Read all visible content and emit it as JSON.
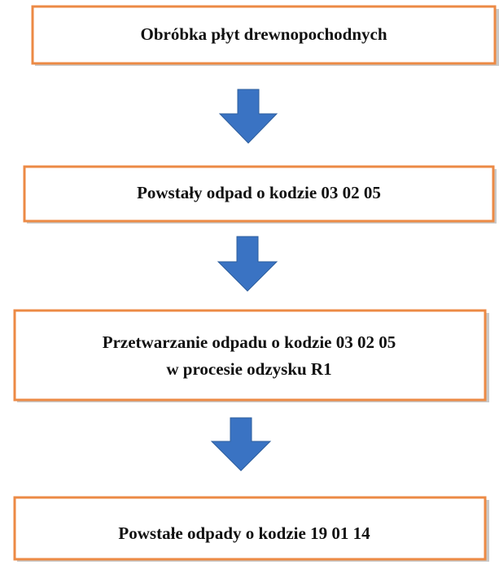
{
  "nodes": [
    {
      "lines": [
        "Obróbka płyt drewnopochodnych"
      ]
    },
    {
      "lines": [
        "Powstały odpad o kodzie 03 02 05"
      ]
    },
    {
      "lines": [
        "Przetwarzanie odpadu o kodzie 03 02 05",
        "w procesie odzysku R1"
      ]
    },
    {
      "lines": [
        "Powstałe odpady o kodzie 19 01 14"
      ]
    }
  ]
}
